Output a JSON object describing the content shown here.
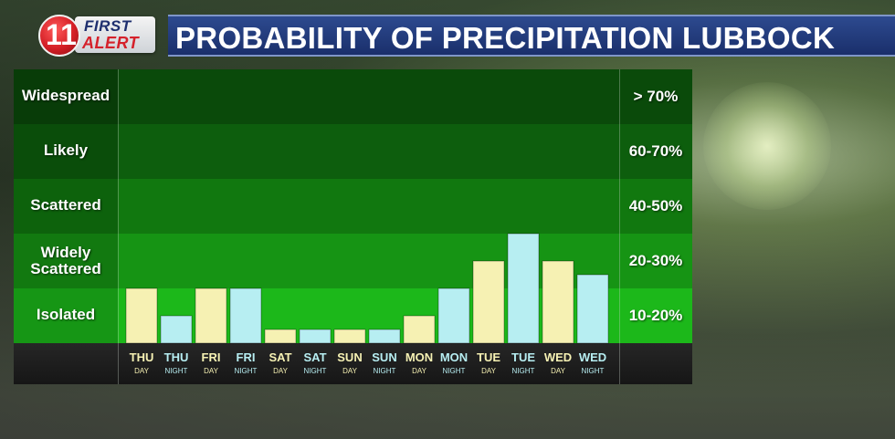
{
  "header": {
    "logo_number": "11",
    "logo_first": "FIRST",
    "logo_alert": "ALERT",
    "title": "PROBABILITY OF PRECIPITATION LUBBOCK"
  },
  "colors": {
    "day_bar": "#f6f1b3",
    "night_bar": "#b7eef2",
    "band_widespread": "#0a4a0a",
    "band_likely": "#0d5e0d",
    "band_scattered": "#11780f",
    "band_widely_scattered": "#169414",
    "band_isolated": "#1cb81a",
    "title_bar": "#1f3a7a"
  },
  "chart_data": {
    "type": "bar",
    "categories": [
      {
        "day": "THU",
        "period": "DAY"
      },
      {
        "day": "THU",
        "period": "NIGHT"
      },
      {
        "day": "FRI",
        "period": "DAY"
      },
      {
        "day": "FRI",
        "period": "NIGHT"
      },
      {
        "day": "SAT",
        "period": "DAY"
      },
      {
        "day": "SAT",
        "period": "NIGHT"
      },
      {
        "day": "SUN",
        "period": "DAY"
      },
      {
        "day": "SUN",
        "period": "NIGHT"
      },
      {
        "day": "MON",
        "period": "DAY"
      },
      {
        "day": "MON",
        "period": "NIGHT"
      },
      {
        "day": "TUE",
        "period": "DAY"
      },
      {
        "day": "TUE",
        "period": "NIGHT"
      },
      {
        "day": "WED",
        "period": "DAY"
      },
      {
        "day": "WED",
        "period": "NIGHT"
      }
    ],
    "values": [
      20,
      10,
      20,
      20,
      5,
      5,
      5,
      5,
      10,
      20,
      30,
      40,
      30,
      25
    ],
    "unit": "%",
    "levels": [
      {
        "label": "Widespread",
        "range": "> 70%"
      },
      {
        "label": "Likely",
        "range": "60-70%"
      },
      {
        "label": "Scattered",
        "range": "40-50%"
      },
      {
        "label": "Widely Scattered",
        "range": "20-30%"
      },
      {
        "label": "Isolated",
        "range": "10-20%"
      }
    ]
  }
}
